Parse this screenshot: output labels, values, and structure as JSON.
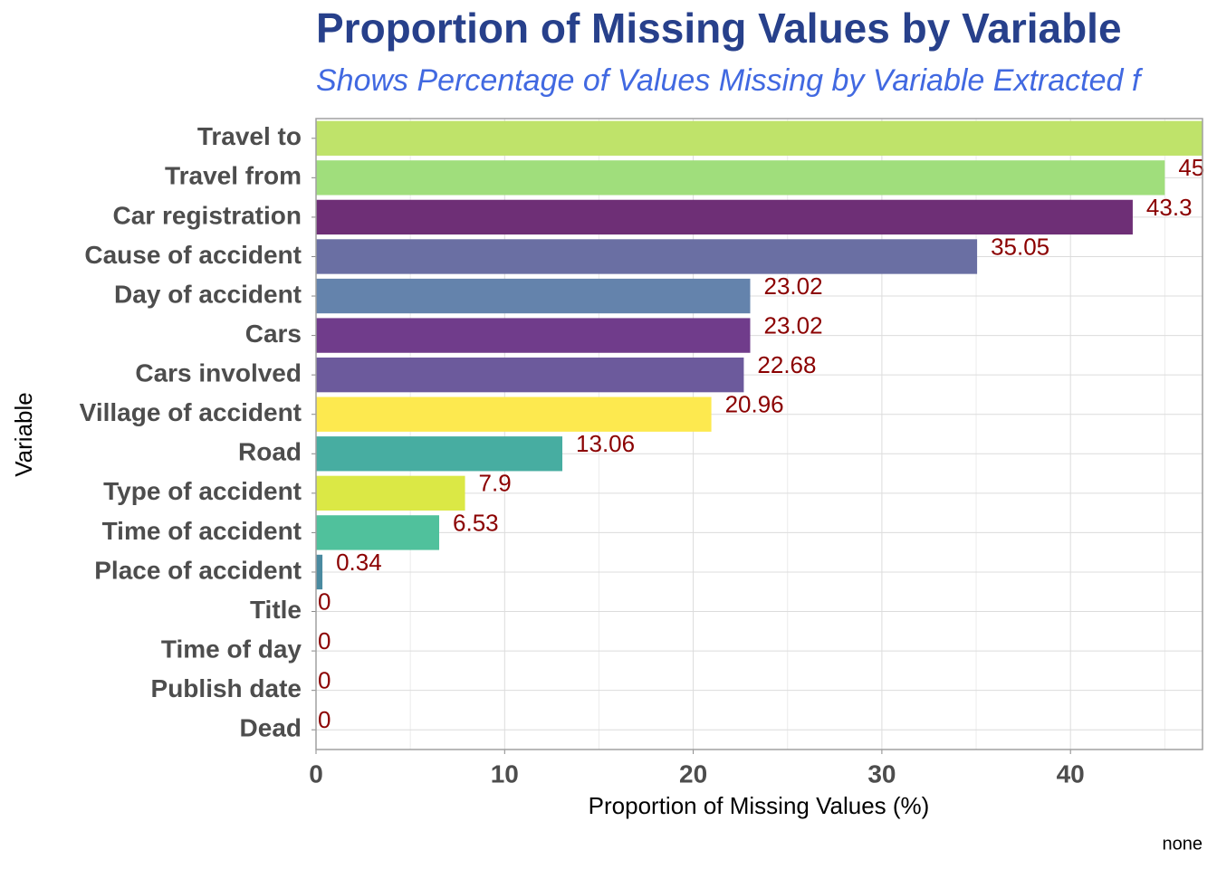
{
  "chart_data": {
    "type": "barh",
    "title": "Proportion of Missing Values by Variable",
    "subtitle": "Shows Percentage of Values Missing by Variable Extracted f",
    "x_label": "Proportion of Missing Values (%)",
    "y_label": "Variable",
    "caption": "none",
    "categories": [
      "Travel to",
      "Travel from",
      "Car registration",
      "Cause of accident",
      "Day of accident",
      "Cars",
      "Cars involved",
      "Village of accident",
      "Road",
      "Type of accident",
      "Time of accident",
      "Place of accident",
      "Title",
      "Time of day",
      "Publish date",
      "Dead"
    ],
    "values": [
      47.5,
      45,
      43.3,
      35.05,
      23.02,
      23.02,
      22.68,
      20.96,
      13.06,
      7.9,
      6.53,
      0.34,
      0,
      0,
      0,
      0
    ],
    "colors": [
      "#bfe36a",
      "#a0de7c",
      "#6e2f76",
      "#6a6fa3",
      "#6483ac",
      "#703c8b",
      "#6c5a9c",
      "#fde94f",
      "#47ada1",
      "#dbe845",
      "#50c19c",
      "#4a8aa0",
      "#888888",
      "#888888",
      "#888888",
      "#888888"
    ],
    "xlim": [
      0,
      47
    ],
    "xticks": [
      0,
      10,
      20,
      30,
      40
    ],
    "grid": true
  }
}
